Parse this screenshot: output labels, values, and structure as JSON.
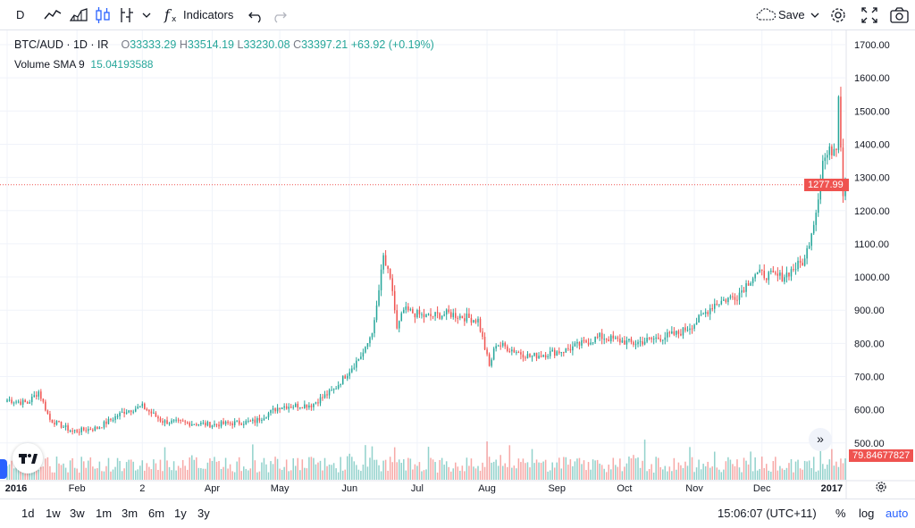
{
  "toolbar": {
    "interval": "D",
    "indicators_label": "Indicators",
    "save_label": "Save",
    "icons": [
      "line-chart-icon",
      "area-chart-icon",
      "candles-icon",
      "compare-icon",
      "chevron-down-icon",
      "function-icon",
      "undo-icon",
      "redo-icon",
      "cloud-icon",
      "gear-icon",
      "fullscreen-icon",
      "camera-icon"
    ]
  },
  "legend": {
    "symbol": "BTC/AUD · 1D · IR",
    "open_label": "O",
    "open": "33333.29",
    "high_label": "H",
    "high": "33514.19",
    "low_label": "L",
    "low": "33230.08",
    "close_label": "C",
    "close": "33397.21",
    "change": "+63.92 (+0.19%)",
    "volume_label": "Volume SMA 9",
    "volume_value": "15.04193588"
  },
  "price_axis": {
    "labels": [
      "1700.00",
      "1600.00",
      "1500.00",
      "1400.00",
      "1300.00",
      "1200.00",
      "1100.00",
      "1000.00",
      "900.00",
      "800.00",
      "700.00",
      "600.00",
      "500.00"
    ],
    "last_price": "1277.99",
    "volume_badge": "79.84677827"
  },
  "time_axis": {
    "labels": [
      "2016",
      "Feb",
      "2",
      "Apr",
      "May",
      "Jun",
      "Jul",
      "Aug",
      "Sep",
      "Oct",
      "Nov",
      "Dec",
      "2017"
    ]
  },
  "bottom_bar": {
    "ranges": [
      "1d",
      "1w",
      "3w",
      "1m",
      "3m",
      "6m",
      "1y",
      "3y"
    ],
    "time": "15:06:07 (UTC+11)",
    "percent": "%",
    "log": "log",
    "auto": "auto"
  },
  "colors": {
    "up": "#26a69a",
    "down": "#ef5350",
    "grid": "#f0f3fa",
    "accent": "#2962ff"
  },
  "chart_data": {
    "type": "candlestick",
    "series_name": "BTC/AUD",
    "x_range": [
      "2016-01-01",
      "2017-01-07"
    ],
    "ylim": [
      480,
      1720
    ],
    "keypoints": [
      [
        "2016-01-01",
        630
      ],
      [
        "2016-01-10",
        620
      ],
      [
        "2016-01-15",
        655
      ],
      [
        "2016-01-20",
        570
      ],
      [
        "2016-01-30",
        535
      ],
      [
        "2016-02-10",
        545
      ],
      [
        "2016-02-22",
        595
      ],
      [
        "2016-03-01",
        610
      ],
      [
        "2016-03-10",
        565
      ],
      [
        "2016-04-01",
        555
      ],
      [
        "2016-04-20",
        565
      ],
      [
        "2016-05-01",
        610
      ],
      [
        "2016-05-15",
        615
      ],
      [
        "2016-05-25",
        660
      ],
      [
        "2016-06-01",
        720
      ],
      [
        "2016-06-08",
        780
      ],
      [
        "2016-06-12",
        860
      ],
      [
        "2016-06-16",
        1060
      ],
      [
        "2016-06-20",
        960
      ],
      [
        "2016-06-22",
        840
      ],
      [
        "2016-06-25",
        900
      ],
      [
        "2016-07-05",
        880
      ],
      [
        "2016-07-15",
        890
      ],
      [
        "2016-07-28",
        870
      ],
      [
        "2016-08-02",
        730
      ],
      [
        "2016-08-05",
        800
      ],
      [
        "2016-08-20",
        760
      ],
      [
        "2016-09-05",
        780
      ],
      [
        "2016-09-20",
        820
      ],
      [
        "2016-10-05",
        800
      ],
      [
        "2016-10-25",
        830
      ],
      [
        "2016-11-01",
        860
      ],
      [
        "2016-11-10",
        920
      ],
      [
        "2016-11-20",
        945
      ],
      [
        "2016-11-28",
        1010
      ],
      [
        "2016-12-10",
        1000
      ],
      [
        "2016-12-20",
        1050
      ],
      [
        "2016-12-25",
        1200
      ],
      [
        "2016-12-28",
        1350
      ],
      [
        "2017-01-03",
        1400
      ],
      [
        "2017-01-04",
        1560
      ],
      [
        "2017-01-06",
        1250
      ],
      [
        "2017-01-07",
        1278
      ]
    ],
    "last_close": 1277.99
  }
}
